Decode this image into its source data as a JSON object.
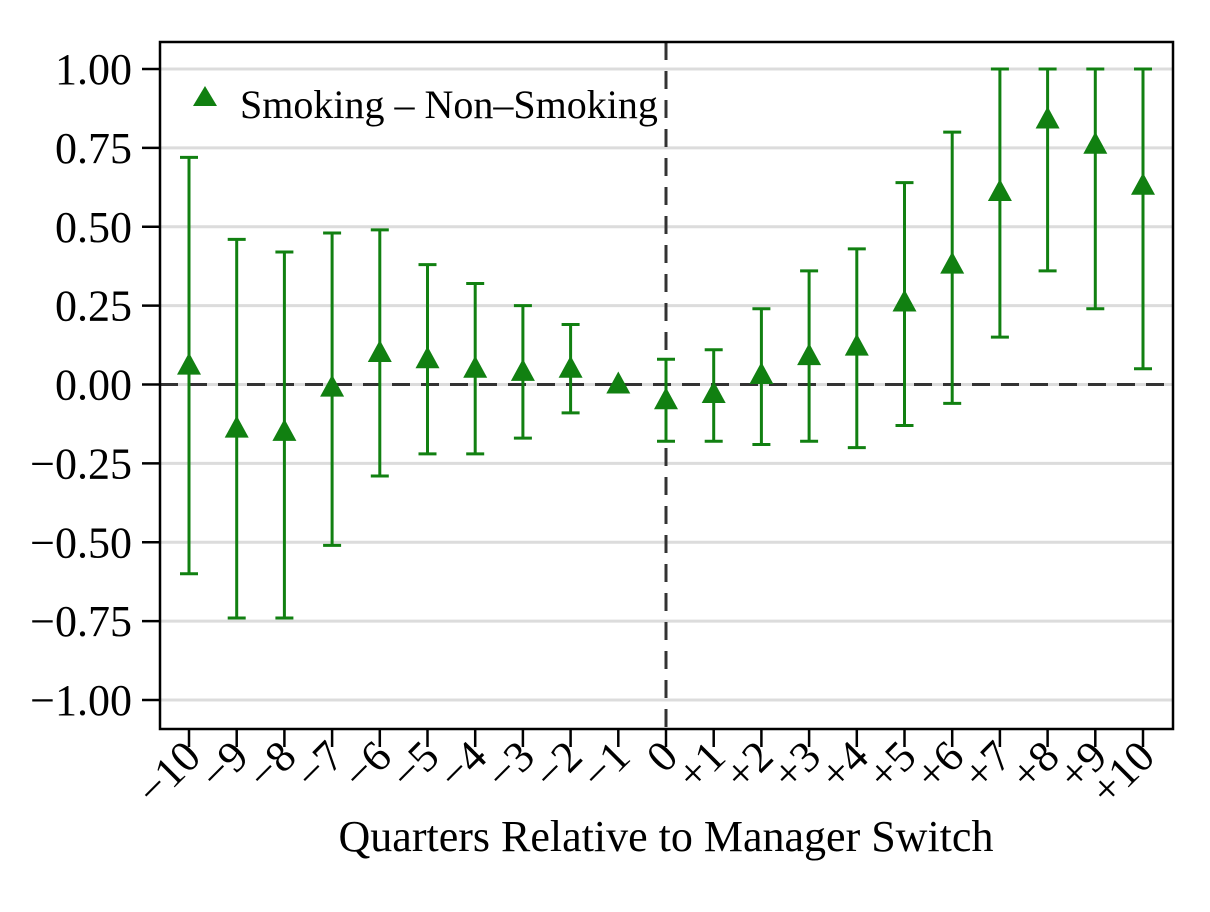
{
  "chart_data": {
    "type": "scatter",
    "xlabel": "Quarters Relative to Manager Switch",
    "ylabel": "",
    "ylim": [
      -1.1,
      1.1
    ],
    "y_ticks": [
      -1.0,
      -0.75,
      -0.5,
      -0.25,
      0.0,
      0.25,
      0.5,
      0.75,
      1.0
    ],
    "y_tick_labels": [
      "−1.00",
      "−0.75",
      "−0.50",
      "−0.25",
      "0.00",
      "0.25",
      "0.50",
      "0.75",
      "1.00"
    ],
    "x_values": [
      -10,
      -9,
      -8,
      -7,
      -6,
      -5,
      -4,
      -3,
      -2,
      -1,
      0,
      1,
      2,
      3,
      4,
      5,
      6,
      7,
      8,
      9,
      10
    ],
    "x_tick_labels": [
      "−10",
      "−9",
      "−8",
      "−7",
      "−6",
      "−5",
      "−4",
      "−3",
      "−2",
      "−1",
      "0",
      "+1",
      "+2",
      "+3",
      "+4",
      "+5",
      "+6",
      "+7",
      "+8",
      "+9",
      "+10"
    ],
    "grid": true,
    "legend_position": "top-left",
    "reference_lines": {
      "x": 0,
      "y": 0
    },
    "series": [
      {
        "name": "Smoking – Non–Smoking",
        "marker": "triangle",
        "color": "#118011",
        "y": [
          0.06,
          -0.14,
          -0.15,
          -0.01,
          0.1,
          0.08,
          0.05,
          0.04,
          0.05,
          0.0,
          -0.05,
          -0.03,
          0.03,
          0.09,
          0.12,
          0.26,
          0.38,
          0.61,
          0.84,
          0.76,
          0.63
        ],
        "lower": [
          -0.6,
          -0.74,
          -0.74,
          -0.51,
          -0.29,
          -0.22,
          -0.22,
          -0.17,
          -0.09,
          0.0,
          -0.18,
          -0.18,
          -0.19,
          -0.18,
          -0.2,
          -0.13,
          -0.06,
          0.15,
          0.36,
          0.24,
          0.05
        ],
        "upper": [
          0.72,
          0.46,
          0.42,
          0.48,
          0.49,
          0.38,
          0.32,
          0.25,
          0.19,
          0.0,
          0.08,
          0.11,
          0.24,
          0.36,
          0.43,
          0.64,
          0.8,
          1.0,
          1.0,
          1.0,
          1.0
        ]
      }
    ]
  }
}
